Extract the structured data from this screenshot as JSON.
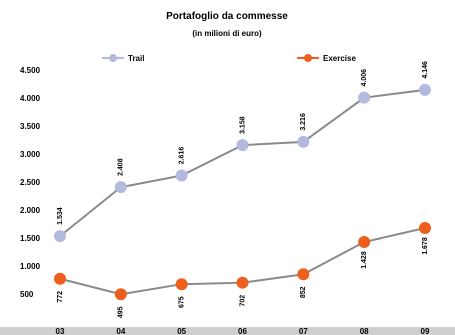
{
  "chart_data": {
    "type": "line",
    "title": "Portafoglio da commesse",
    "subtitle": "(in milioni di euro)",
    "categories": [
      "03",
      "04",
      "05",
      "06",
      "07",
      "08",
      "09"
    ],
    "series": [
      {
        "name": "Trail",
        "color": "#b4b9e0",
        "values": [
          1534,
          2408,
          2616,
          3158,
          3216,
          4006,
          4146
        ],
        "data_labels": [
          "1.534",
          "2.408",
          "2.616",
          "3.158",
          "3.216",
          "4.006",
          "4.146"
        ]
      },
      {
        "name": "Exercise",
        "color": "#ec5f1c",
        "values": [
          772,
          495,
          675,
          702,
          852,
          1428,
          1678
        ],
        "data_labels": [
          "772",
          "495",
          "675",
          "702",
          "852",
          "1.428",
          "1.678"
        ]
      }
    ],
    "y_ticks": [
      "500",
      "1.000",
      "1.500",
      "2.000",
      "2.500",
      "3.000",
      "3.500",
      "4.000",
      "4.500"
    ],
    "ylim": [
      0,
      4500
    ],
    "grid": false,
    "legend": "top"
  }
}
